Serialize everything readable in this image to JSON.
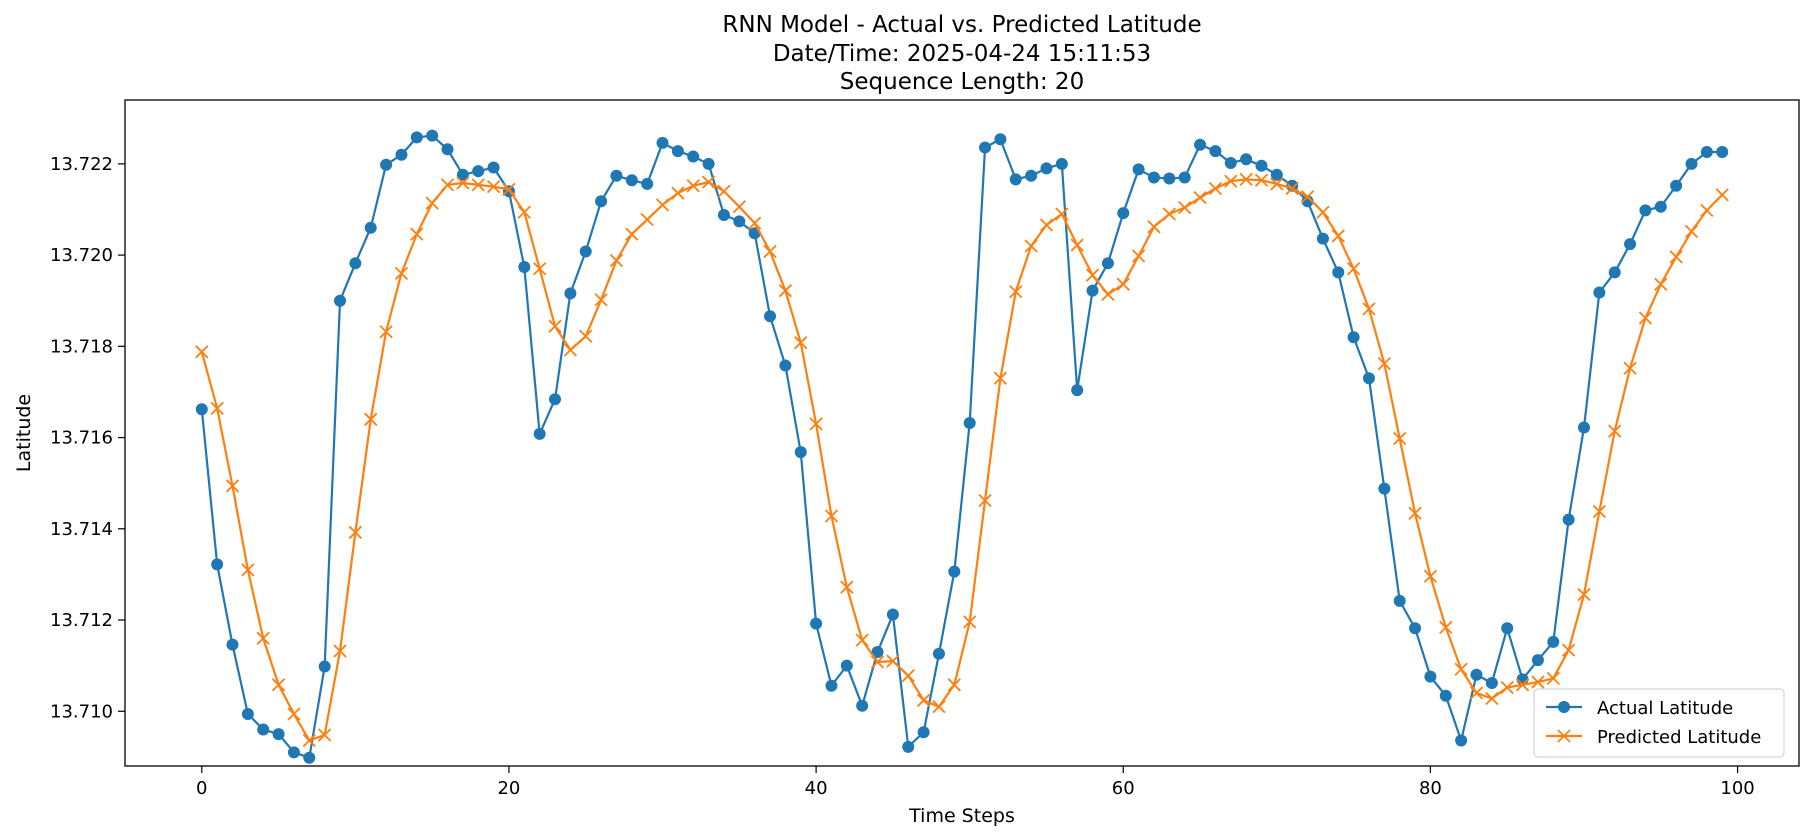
{
  "chart_data": {
    "type": "line",
    "title": [
      "RNN Model - Actual vs. Predicted Latitude",
      "Date/Time: 2025-04-24 15:11:53",
      "Sequence Length: 20"
    ],
    "xlabel": "Time Steps",
    "ylabel": "Latitude",
    "xlim": [
      -5,
      104
    ],
    "ylim": [
      13.7088,
      13.7234
    ],
    "xticks": [
      0,
      20,
      40,
      60,
      80,
      100
    ],
    "yticks": [
      13.71,
      13.712,
      13.714,
      13.716,
      13.718,
      13.72,
      13.722
    ],
    "ytick_labels": [
      "13.710",
      "13.712",
      "13.714",
      "13.716",
      "13.718",
      "13.720",
      "13.722"
    ],
    "grid": false,
    "legend_position": "lower right",
    "series": [
      {
        "name": "Actual Latitude",
        "color": "#1f77b4",
        "marker": "circle",
        "values": [
          13.71662,
          13.71322,
          13.71146,
          13.70994,
          13.7096,
          13.7095,
          13.7091,
          13.70898,
          13.71098,
          13.719,
          13.71982,
          13.7206,
          13.72198,
          13.7222,
          13.72258,
          13.72262,
          13.72232,
          13.72176,
          13.72184,
          13.72192,
          13.7214,
          13.71974,
          13.71608,
          13.71684,
          13.71916,
          13.72008,
          13.72118,
          13.72174,
          13.72164,
          13.72156,
          13.72246,
          13.72228,
          13.72216,
          13.722,
          13.72088,
          13.72074,
          13.72048,
          13.71866,
          13.71758,
          13.71568,
          13.71192,
          13.71056,
          13.711,
          13.71012,
          13.7113,
          13.71212,
          13.70922,
          13.70954,
          13.71126,
          13.71306,
          13.71632,
          13.72236,
          13.72254,
          13.72166,
          13.72174,
          13.7219,
          13.722,
          13.71704,
          13.71922,
          13.71982,
          13.72092,
          13.72188,
          13.7217,
          13.72168,
          13.7217,
          13.72242,
          13.72228,
          13.72202,
          13.7221,
          13.72196,
          13.72176,
          13.72152,
          13.72118,
          13.72036,
          13.71962,
          13.7182,
          13.7173,
          13.71488,
          13.71242,
          13.71182,
          13.71076,
          13.71034,
          13.70936,
          13.7108,
          13.71062,
          13.71182,
          13.7107,
          13.71112,
          13.71152,
          13.7142,
          13.71622,
          13.71918,
          13.71962,
          13.72024,
          13.72098,
          13.72106,
          13.72152,
          13.722,
          13.72226,
          13.72226
        ]
      },
      {
        "name": "Predicted Latitude",
        "color": "#ff7f0e",
        "marker": "x",
        "values": [
          13.71788,
          13.71664,
          13.71494,
          13.7131,
          13.7116,
          13.71058,
          13.70994,
          13.70936,
          13.70948,
          13.71132,
          13.71392,
          13.7164,
          13.71832,
          13.7196,
          13.72046,
          13.72114,
          13.72154,
          13.72158,
          13.72154,
          13.7215,
          13.72144,
          13.72094,
          13.7197,
          13.71844,
          13.71792,
          13.71822,
          13.71902,
          13.71988,
          13.72046,
          13.72078,
          13.7211,
          13.72136,
          13.72152,
          13.7216,
          13.7214,
          13.72106,
          13.7207,
          13.72008,
          13.71922,
          13.71808,
          13.7163,
          13.71428,
          13.71272,
          13.71156,
          13.71108,
          13.7111,
          13.71078,
          13.71024,
          13.7101,
          13.71058,
          13.71196,
          13.71462,
          13.7173,
          13.7192,
          13.7202,
          13.72066,
          13.7209,
          13.72022,
          13.71956,
          13.71914,
          13.71936,
          13.71998,
          13.72062,
          13.7209,
          13.72104,
          13.72126,
          13.72146,
          13.72162,
          13.72166,
          13.72164,
          13.72156,
          13.72146,
          13.72128,
          13.72094,
          13.72042,
          13.7197,
          13.71882,
          13.71762,
          13.71598,
          13.71434,
          13.71296,
          13.71184,
          13.71092,
          13.7104,
          13.71028,
          13.71052,
          13.71058,
          13.71064,
          13.71072,
          13.71134,
          13.71256,
          13.71438,
          13.71614,
          13.71752,
          13.71862,
          13.71936,
          13.71996,
          13.72052,
          13.72098,
          13.72132
        ]
      }
    ]
  }
}
